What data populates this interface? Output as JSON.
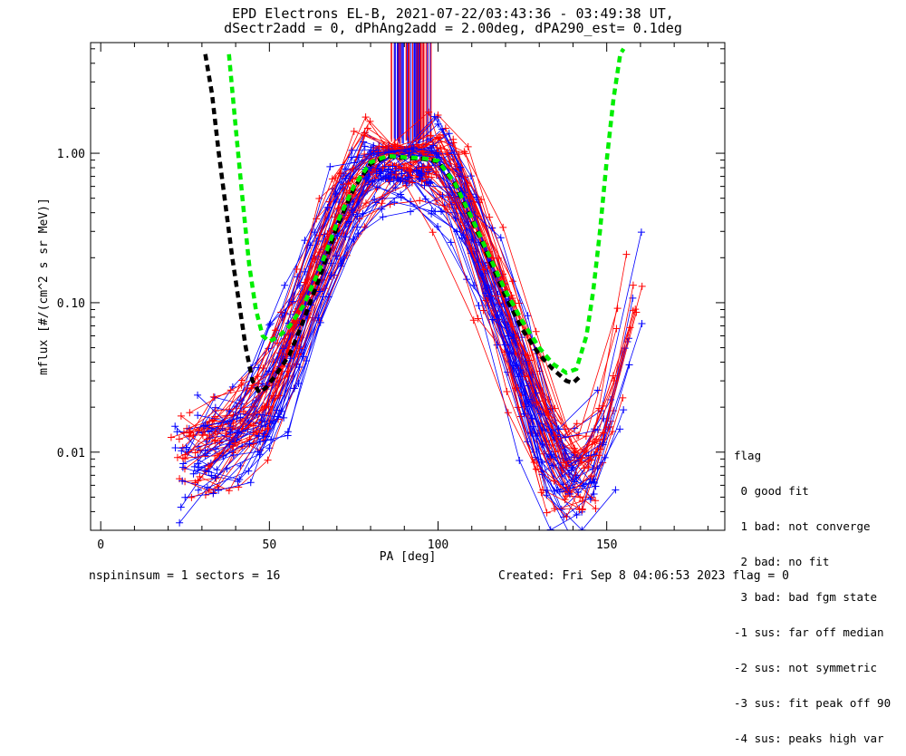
{
  "title": {
    "line1": "EPD Electrons EL-B, 2021-07-22/03:43:36 - 03:49:38 UT,",
    "line2": "dSectr2add = 0, dPhAng2add = 2.00deg, dPA290_est=   0.1deg"
  },
  "footer": {
    "left": "nspininsum =  1  sectors = 16",
    "right": "Created: Fri Sep  8 04:06:53 2023   flag = 0"
  },
  "legend": {
    "title": "flag",
    "items": [
      " 0 good fit",
      " 1 bad: not converge",
      " 2 bad: no fit",
      " 3 bad: bad fgm state",
      "-1 sus: far off median",
      "-2 sus: not symmetric",
      "-3 sus: fit peak off 90",
      "-4 sus: peaks high var"
    ]
  },
  "chart_data": {
    "type": "line",
    "xlabel": "PA [deg]",
    "ylabel": "mflux [#/(cm^2 s sr MeV)]",
    "xlim": [
      -3,
      185
    ],
    "ylim": [
      0.003,
      5.5
    ],
    "yscale": "log",
    "x_ticks": [
      0,
      50,
      100,
      150
    ],
    "y_ticks": [
      0.01,
      0.1,
      1.0
    ],
    "y_tick_labels": [
      "0.01",
      "0.10",
      "1.00"
    ],
    "fit_curves": [
      {
        "color": "#000000",
        "style": "dashed",
        "x": [
          31,
          33,
          35,
          37,
          39,
          41,
          43,
          45,
          47,
          49,
          52,
          56,
          60,
          65,
          70,
          75,
          80,
          85,
          90,
          95,
          100,
          105,
          110,
          115,
          120,
          125,
          130,
          134,
          138,
          140,
          142
        ],
        "y": [
          4.6,
          2.5,
          1.0,
          0.45,
          0.2,
          0.1,
          0.05,
          0.03,
          0.025,
          0.027,
          0.033,
          0.045,
          0.075,
          0.15,
          0.32,
          0.58,
          0.85,
          0.95,
          0.93,
          0.92,
          0.88,
          0.62,
          0.36,
          0.2,
          0.11,
          0.066,
          0.045,
          0.036,
          0.03,
          0.029,
          0.032
        ]
      },
      {
        "color": "#00ee00",
        "style": "dashed",
        "x": [
          38,
          40,
          42,
          44,
          46,
          48,
          50,
          53,
          56,
          60,
          65,
          70,
          75,
          80,
          85,
          90,
          95,
          100,
          105,
          110,
          115,
          120,
          125,
          130,
          134,
          138,
          141,
          144,
          146,
          148,
          150,
          152,
          154,
          155
        ],
        "y": [
          4.6,
          1.5,
          0.5,
          0.18,
          0.09,
          0.06,
          0.055,
          0.06,
          0.07,
          0.095,
          0.17,
          0.34,
          0.6,
          0.87,
          0.96,
          0.94,
          0.93,
          0.89,
          0.63,
          0.37,
          0.21,
          0.12,
          0.075,
          0.05,
          0.039,
          0.034,
          0.036,
          0.06,
          0.12,
          0.3,
          0.9,
          2.3,
          4.6,
          5.0
        ]
      }
    ],
    "envelope": {
      "x": [
        22,
        30,
        40,
        50,
        55,
        60,
        65,
        70,
        75,
        80,
        85,
        90,
        95,
        100,
        105,
        110,
        115,
        120,
        125,
        130,
        135,
        140,
        145,
        150,
        155,
        160
      ],
      "mid": [
        0.008,
        0.009,
        0.012,
        0.02,
        0.04,
        0.08,
        0.16,
        0.32,
        0.55,
        0.8,
        0.9,
        0.9,
        0.88,
        0.85,
        0.55,
        0.3,
        0.15,
        0.07,
        0.03,
        0.013,
        0.007,
        0.006,
        0.007,
        0.009,
        0.05,
        0.15
      ]
    },
    "series": [
      {
        "name": "",
        "color": "#ff0000"
      },
      {
        "name": "",
        "color": "#0000ff"
      }
    ],
    "vertical_lines": {
      "x_range": [
        86,
        98
      ],
      "y_range": [
        1.3,
        5.5
      ],
      "colors": [
        "#0000ff",
        "#ff0000"
      ]
    }
  }
}
